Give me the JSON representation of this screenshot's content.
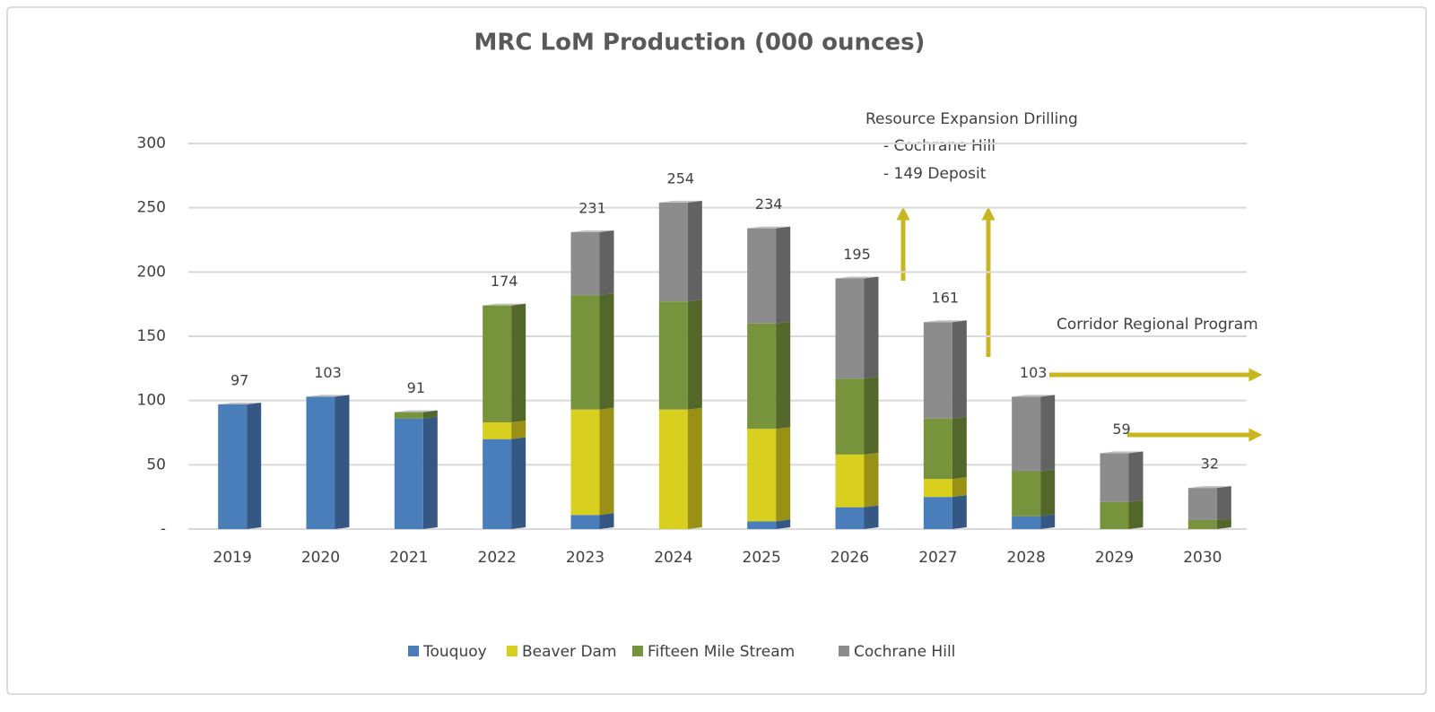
{
  "chart_data": {
    "type": "bar",
    "stacked": true,
    "title": "MRC LoM Production (000 ounces)",
    "categories": [
      "2019",
      "2020",
      "2021",
      "2022",
      "2023",
      "2024",
      "2025",
      "2026",
      "2027",
      "2028",
      "2029",
      "2030"
    ],
    "series": [
      {
        "name": "Touquoy",
        "color": "#4a7ebb",
        "values": [
          97,
          103,
          86,
          70,
          11,
          0,
          6,
          17,
          25,
          10,
          0,
          0
        ]
      },
      {
        "name": "Beaver Dam",
        "color": "#d9cf1e",
        "values": [
          0,
          0,
          0,
          13,
          82,
          93,
          72,
          41,
          14,
          0,
          0,
          0
        ]
      },
      {
        "name": "Fifteen Mile Stream",
        "color": "#77933c",
        "values": [
          0,
          0,
          5,
          91,
          89,
          84,
          82,
          59,
          47,
          35,
          21,
          7
        ]
      },
      {
        "name": "Cochrane Hill",
        "color": "#8c8c8c",
        "values": [
          0,
          0,
          0,
          0,
          49,
          77,
          74,
          78,
          75,
          58,
          38,
          25
        ]
      }
    ],
    "totals": [
      97,
      103,
      91,
      174,
      231,
      254,
      234,
      195,
      161,
      103,
      59,
      32
    ],
    "ylim": [
      0,
      300
    ],
    "yticks": [
      {
        "value": 0,
        "label": "-"
      },
      50,
      100,
      150,
      200,
      250,
      300
    ],
    "grid": true,
    "legend": "bottom",
    "annotations": [
      "Resource Expansion Drilling",
      "- Cochrane Hill",
      "- 149 Deposit",
      "Corridor Regional Program"
    ]
  }
}
